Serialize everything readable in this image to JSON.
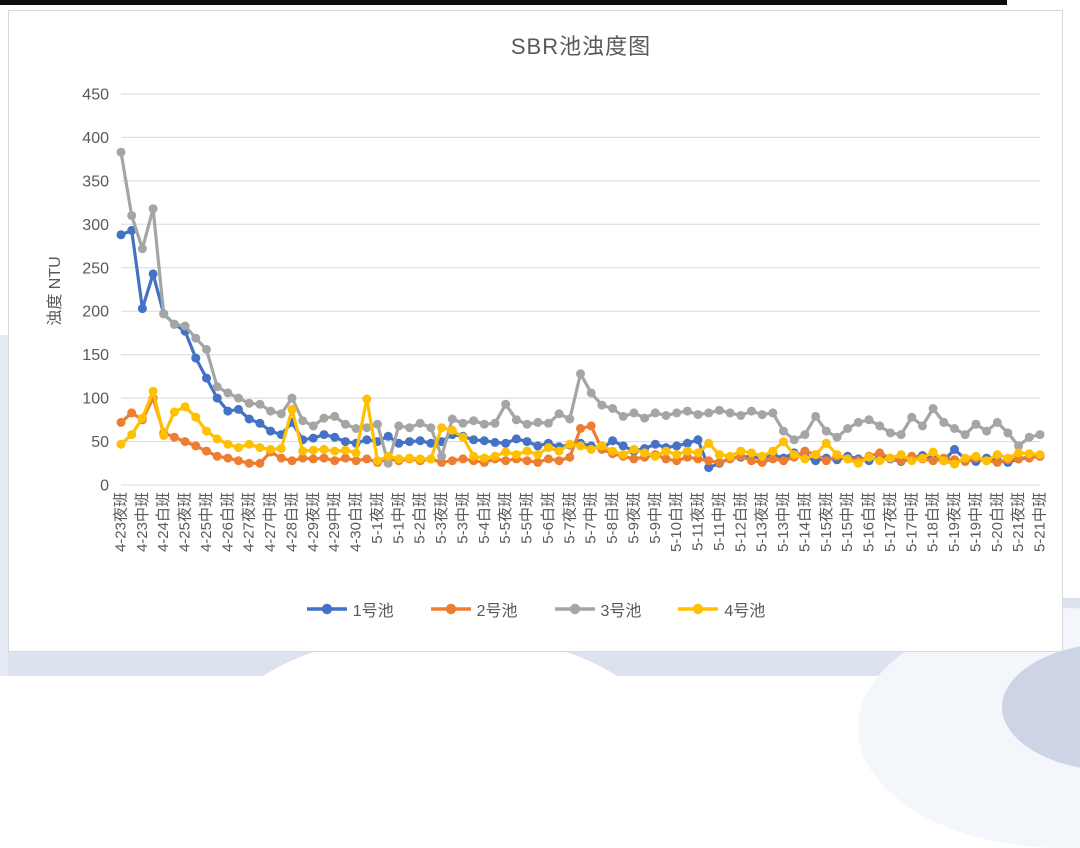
{
  "page": {
    "top_bar_color": "#0f0f0f",
    "background_band_color": "#dce2ee"
  },
  "card": {
    "background": "#ffffff",
    "border_color": "#d9d9d9"
  },
  "text_color": "#595959",
  "grid_color": "#d9d9d9",
  "chart_data": {
    "type": "line",
    "title": "SBR池浊度图",
    "ylabel": "浊度 NTU",
    "xlabel": "",
    "ylim": [
      0,
      450
    ],
    "yticks": [
      0,
      50,
      100,
      150,
      200,
      250,
      300,
      350,
      400,
      450
    ],
    "grid": "horizontal",
    "legend_position": "bottom",
    "marker": "circle",
    "n_points": 87,
    "points_per_label": 2,
    "x_labels": [
      "4-23夜班",
      "4-23中班",
      "4-24白班",
      "4-25夜班",
      "4-25中班",
      "4-26白班",
      "4-27夜班",
      "4-27中班",
      "4-28白班",
      "4-29夜班",
      "4-29中班",
      "4-30白班",
      "5-1夜班",
      "5-1中班",
      "5-2白班",
      "5-3夜班",
      "5-3中班",
      "5-4白班",
      "5-5夜班",
      "5-5中班",
      "5-6白班",
      "5-7夜班",
      "5-7中班",
      "5-8白班",
      "5-9夜班",
      "5-9中班",
      "5-10白班",
      "5-11夜班",
      "5-11中班",
      "5-12白班",
      "5-13夜班",
      "5-13中班",
      "5-14白班",
      "5-15夜班",
      "5-15中班",
      "5-16白班",
      "5-17夜班",
      "5-17中班",
      "5-18白班",
      "5-19夜班",
      "5-19中班",
      "5-20白班",
      "5-21夜班",
      "5-21中班"
    ],
    "series": [
      {
        "name": "1号池",
        "color": "#4472C4",
        "values": [
          288,
          293,
          203,
          243,
          197,
          185,
          177,
          146,
          123,
          100,
          85,
          87,
          76,
          71,
          62,
          58,
          72,
          52,
          54,
          58,
          55,
          50,
          48,
          52,
          50,
          56,
          48,
          50,
          51,
          48,
          50,
          58,
          56,
          52,
          51,
          49,
          48,
          53,
          50,
          45,
          48,
          44,
          46,
          48,
          45,
          42,
          51,
          45,
          39,
          42,
          47,
          43,
          45,
          48,
          52,
          20,
          25,
          31,
          32,
          33,
          30,
          35,
          31,
          37,
          33,
          28,
          31,
          29,
          33,
          30,
          28,
          32,
          30,
          27,
          31,
          34,
          30,
          28,
          41,
          30,
          27,
          31,
          28,
          26,
          30,
          32,
          33
        ]
      },
      {
        "name": "2号池",
        "color": "#ED7D31",
        "values": [
          72,
          83,
          75,
          100,
          60,
          55,
          50,
          45,
          39,
          33,
          31,
          28,
          25,
          25,
          38,
          31,
          28,
          31,
          30,
          31,
          28,
          31,
          28,
          30,
          26,
          30,
          28,
          30,
          28,
          30,
          26,
          28,
          30,
          28,
          26,
          30,
          28,
          30,
          28,
          26,
          30,
          28,
          32,
          65,
          68,
          41,
          36,
          33,
          30,
          32,
          35,
          30,
          28,
          32,
          30,
          28,
          26,
          30,
          33,
          28,
          26,
          30,
          28,
          32,
          39,
          35,
          28,
          33,
          30,
          28,
          33,
          37,
          31,
          28,
          33,
          30,
          28,
          31,
          29,
          27,
          31,
          28,
          26,
          29,
          30,
          31,
          33
        ]
      },
      {
        "name": "3号池",
        "color": "#A5A5A5",
        "values": [
          383,
          310,
          272,
          318,
          197,
          185,
          183,
          169,
          156,
          113,
          106,
          100,
          94,
          93,
          85,
          82,
          100,
          74,
          68,
          77,
          79,
          70,
          65,
          66,
          70,
          25,
          68,
          66,
          71,
          66,
          33,
          76,
          71,
          74,
          70,
          71,
          93,
          75,
          70,
          72,
          71,
          82,
          76,
          128,
          106,
          92,
          88,
          79,
          83,
          77,
          83,
          80,
          83,
          85,
          81,
          83,
          86,
          83,
          80,
          85,
          81,
          83,
          62,
          52,
          58,
          79,
          62,
          55,
          65,
          72,
          75,
          68,
          60,
          58,
          78,
          68,
          88,
          72,
          65,
          58,
          70,
          62,
          72,
          60,
          45,
          55,
          58
        ]
      },
      {
        "name": "4号池",
        "color": "#FFC000",
        "values": [
          47,
          58,
          77,
          108,
          57,
          84,
          90,
          78,
          62,
          53,
          47,
          43,
          47,
          43,
          41,
          42,
          87,
          39,
          40,
          41,
          39,
          40,
          37,
          99,
          28,
          33,
          30,
          31,
          30,
          30,
          66,
          63,
          55,
          33,
          31,
          33,
          38,
          35,
          39,
          35,
          43,
          39,
          47,
          45,
          41,
          45,
          39,
          35,
          41,
          37,
          33,
          39,
          35,
          39,
          37,
          48,
          35,
          33,
          39,
          37,
          33,
          39,
          50,
          35,
          30,
          35,
          48,
          35,
          30,
          25,
          32,
          28,
          31,
          35,
          28,
          31,
          38,
          28,
          24,
          31,
          33,
          28,
          35,
          31,
          37,
          36,
          35
        ]
      }
    ]
  }
}
